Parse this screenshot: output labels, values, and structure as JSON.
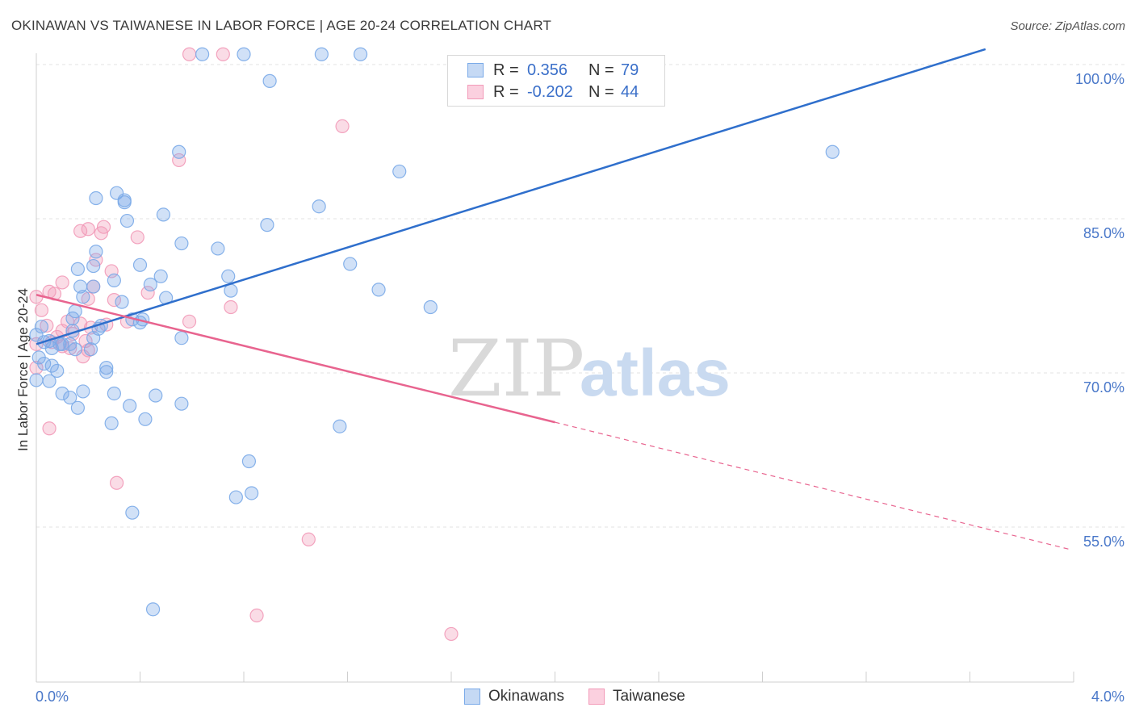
{
  "title": "OKINAWAN VS TAIWANESE IN LABOR FORCE | AGE 20-24 CORRELATION CHART",
  "source": "Source: ZipAtlas.com",
  "watermark": {
    "zip": "ZIP",
    "atlas": "atlas"
  },
  "legend": {
    "rows": [
      {
        "r_label": "R =",
        "r_value": "0.356",
        "n_label": "N =",
        "n_value": "79"
      },
      {
        "r_label": "R =",
        "r_value": "-0.202",
        "n_label": "N =",
        "n_value": "44"
      }
    ]
  },
  "bottom_legend": [
    "Okinawans",
    "Taiwanese"
  ],
  "chart_data": {
    "type": "scatter",
    "title": "OKINAWAN VS TAIWANESE IN LABOR FORCE | AGE 20-24 CORRELATION CHART",
    "xlabel": "",
    "ylabel": "In Labor Force | Age 20-24",
    "xlim": [
      0.0,
      4.0
    ],
    "ylim": [
      41.0,
      101.5
    ],
    "x_tick_labels": [
      "0.0%",
      "4.0%"
    ],
    "y_ticks": [
      55.0,
      70.0,
      85.0,
      100.0
    ],
    "y_tick_labels": [
      "55.0%",
      "70.0%",
      "85.0%",
      "100.0%"
    ],
    "colors": {
      "okinawans": "#7aaae8",
      "taiwanese": "#f29ab8",
      "okinawans_line": "#2f6fcc",
      "taiwanese_line": "#e8648f"
    },
    "series": [
      {
        "name": "Okinawans",
        "r": 0.356,
        "n": 79,
        "trend": {
          "x0": 0.0,
          "y0": 72.8,
          "x1": 3.66,
          "y1": 101.5
        },
        "points": [
          [
            0.64,
            101.0
          ],
          [
            0.8,
            101.0
          ],
          [
            1.1,
            101.0
          ],
          [
            1.25,
            101.0
          ],
          [
            0.9,
            98.4
          ],
          [
            0.55,
            91.5
          ],
          [
            3.07,
            91.5
          ],
          [
            1.4,
            89.6
          ],
          [
            0.23,
            87.0
          ],
          [
            0.31,
            87.5
          ],
          [
            0.34,
            86.8
          ],
          [
            0.34,
            86.6
          ],
          [
            1.09,
            86.2
          ],
          [
            0.49,
            85.4
          ],
          [
            0.35,
            84.8
          ],
          [
            0.89,
            84.4
          ],
          [
            0.56,
            82.6
          ],
          [
            0.7,
            82.1
          ],
          [
            0.23,
            81.8
          ],
          [
            0.22,
            80.4
          ],
          [
            0.16,
            80.1
          ],
          [
            0.4,
            80.5
          ],
          [
            1.21,
            80.6
          ],
          [
            0.48,
            79.4
          ],
          [
            0.74,
            79.4
          ],
          [
            0.3,
            79.0
          ],
          [
            0.17,
            78.4
          ],
          [
            0.22,
            78.4
          ],
          [
            0.44,
            78.6
          ],
          [
            1.32,
            78.1
          ],
          [
            0.75,
            78.0
          ],
          [
            0.18,
            77.4
          ],
          [
            0.5,
            77.3
          ],
          [
            0.33,
            76.9
          ],
          [
            1.52,
            76.4
          ],
          [
            0.15,
            76.0
          ],
          [
            0.14,
            75.3
          ],
          [
            0.37,
            75.2
          ],
          [
            0.41,
            75.2
          ],
          [
            0.02,
            74.5
          ],
          [
            0.25,
            74.6
          ],
          [
            0.24,
            74.3
          ],
          [
            0.0,
            73.7
          ],
          [
            0.22,
            73.4
          ],
          [
            0.56,
            73.4
          ],
          [
            0.05,
            73.1
          ],
          [
            0.09,
            72.8
          ],
          [
            0.1,
            72.8
          ],
          [
            0.13,
            72.8
          ],
          [
            0.06,
            72.4
          ],
          [
            0.15,
            72.3
          ],
          [
            0.21,
            72.3
          ],
          [
            0.01,
            71.5
          ],
          [
            0.03,
            70.9
          ],
          [
            0.06,
            70.7
          ],
          [
            0.27,
            70.5
          ],
          [
            0.08,
            70.2
          ],
          [
            0.27,
            70.1
          ],
          [
            0.0,
            69.3
          ],
          [
            0.05,
            69.2
          ],
          [
            0.1,
            68.0
          ],
          [
            0.18,
            68.2
          ],
          [
            0.3,
            68.0
          ],
          [
            0.46,
            67.8
          ],
          [
            0.13,
            67.6
          ],
          [
            0.56,
            67.0
          ],
          [
            0.36,
            66.8
          ],
          [
            0.16,
            66.6
          ],
          [
            0.42,
            65.5
          ],
          [
            0.29,
            65.1
          ],
          [
            1.17,
            64.8
          ],
          [
            0.82,
            61.4
          ],
          [
            0.83,
            58.3
          ],
          [
            0.77,
            57.9
          ],
          [
            0.37,
            56.4
          ],
          [
            0.45,
            47.0
          ],
          [
            0.03,
            73.0
          ],
          [
            0.14,
            74.1
          ],
          [
            0.4,
            74.9
          ]
        ]
      },
      {
        "name": "Taiwanese",
        "r": -0.202,
        "n": 44,
        "trend": {
          "x0": 0.0,
          "y0": 77.6,
          "x1": 2.0,
          "y1": 65.2,
          "dash_x1": 3.99,
          "dash_y1": 52.8
        },
        "points": [
          [
            0.59,
            101.0
          ],
          [
            0.72,
            101.0
          ],
          [
            1.18,
            94.0
          ],
          [
            0.55,
            90.7
          ],
          [
            0.26,
            84.2
          ],
          [
            0.17,
            83.8
          ],
          [
            0.2,
            84.0
          ],
          [
            0.25,
            83.6
          ],
          [
            0.39,
            83.2
          ],
          [
            0.23,
            81.0
          ],
          [
            0.29,
            79.9
          ],
          [
            0.1,
            78.8
          ],
          [
            0.22,
            78.4
          ],
          [
            0.05,
            77.9
          ],
          [
            0.07,
            77.7
          ],
          [
            0.3,
            77.1
          ],
          [
            0.0,
            77.4
          ],
          [
            0.2,
            77.2
          ],
          [
            0.43,
            77.8
          ],
          [
            0.75,
            76.4
          ],
          [
            0.02,
            76.1
          ],
          [
            0.12,
            75.0
          ],
          [
            0.17,
            74.8
          ],
          [
            0.04,
            74.6
          ],
          [
            0.27,
            74.7
          ],
          [
            0.35,
            75.0
          ],
          [
            0.59,
            75.0
          ],
          [
            0.1,
            74.1
          ],
          [
            0.14,
            73.8
          ],
          [
            0.21,
            74.4
          ],
          [
            0.06,
            73.0
          ],
          [
            0.1,
            72.6
          ],
          [
            0.19,
            73.1
          ],
          [
            0.0,
            72.8
          ],
          [
            0.08,
            73.5
          ],
          [
            0.2,
            72.2
          ],
          [
            0.13,
            72.4
          ],
          [
            0.18,
            71.6
          ],
          [
            0.0,
            70.5
          ],
          [
            0.05,
            64.6
          ],
          [
            0.31,
            59.3
          ],
          [
            1.05,
            53.8
          ],
          [
            0.85,
            46.4
          ],
          [
            1.6,
            44.6
          ]
        ]
      }
    ]
  }
}
